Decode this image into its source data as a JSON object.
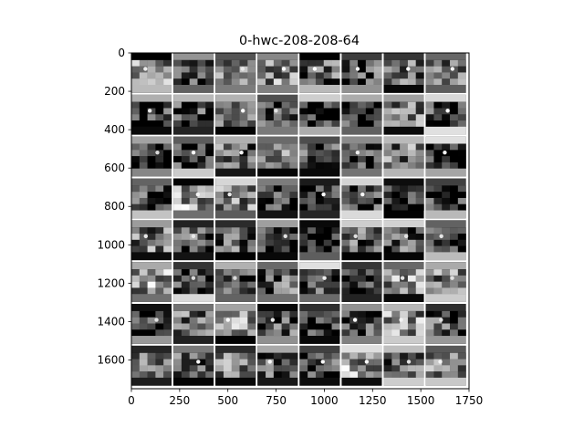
{
  "chart_data": {
    "type": "heatmap",
    "title": "0-hwc-208-208-64",
    "xlabel": "",
    "ylabel": "",
    "xlim": [
      0,
      1750
    ],
    "ylim": [
      1750,
      0
    ],
    "x_ticks": [
      0,
      250,
      500,
      750,
      1000,
      1250,
      1500,
      1750
    ],
    "y_ticks": [
      0,
      200,
      400,
      600,
      800,
      1000,
      1200,
      1400,
      1600
    ],
    "grid": false,
    "layout": {
      "rows": 8,
      "cols": 8,
      "tile_size": 208,
      "gap": 10,
      "channels": 64
    },
    "colormap": "gray",
    "tile_brightness": [
      [
        0.55,
        0.25,
        0.45,
        0.5,
        0.4,
        0.3,
        0.35,
        0.5
      ],
      [
        0.2,
        0.25,
        0.3,
        0.25,
        0.15,
        0.2,
        0.45,
        0.25
      ],
      [
        0.3,
        0.2,
        0.4,
        0.45,
        0.35,
        0.2,
        0.45,
        0.15
      ],
      [
        0.25,
        0.6,
        0.45,
        0.25,
        0.2,
        0.25,
        0.25,
        0.2
      ],
      [
        0.45,
        0.35,
        0.4,
        0.15,
        0.1,
        0.35,
        0.35,
        0.2
      ],
      [
        0.6,
        0.2,
        0.25,
        0.35,
        0.25,
        0.2,
        0.55,
        0.45
      ],
      [
        0.25,
        0.4,
        0.55,
        0.3,
        0.2,
        0.25,
        0.55,
        0.3
      ],
      [
        0.55,
        0.35,
        0.45,
        0.3,
        0.25,
        0.6,
        0.35,
        0.45
      ]
    ]
  }
}
